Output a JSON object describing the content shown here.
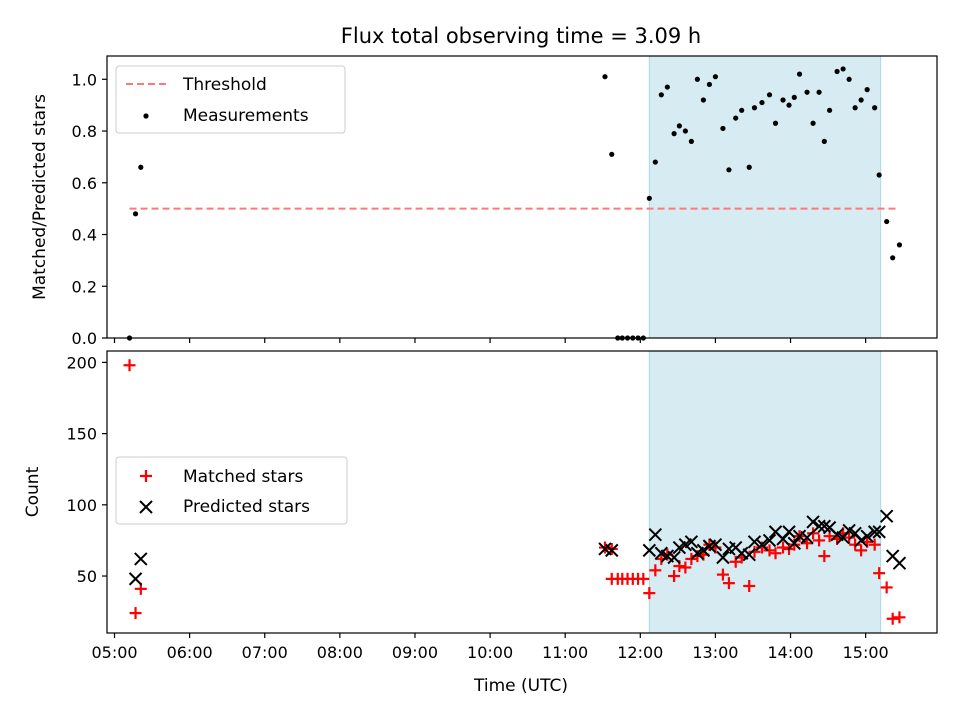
{
  "title": "Flux total observing time = 3.09 h",
  "colors": {
    "threshold": "#ff7777",
    "measurement": "#000000",
    "matched": "#ff0000",
    "predicted": "#000000",
    "span": "#add8e6"
  },
  "chart_data": [
    {
      "type": "scatter",
      "ylabel": "Matched/Predicted stars",
      "xlim": [
        4.9,
        15.95
      ],
      "ylim": [
        0,
        1.09
      ],
      "yticks": [
        0.0,
        0.2,
        0.4,
        0.6,
        0.8,
        1.0
      ],
      "ytick_labels": [
        "0.0",
        "0.2",
        "0.4",
        "0.6",
        "0.8",
        "1.0"
      ],
      "span": [
        12.12,
        15.2
      ],
      "threshold": {
        "name": "Threshold",
        "value": 0.5,
        "x_range": [
          5.2,
          15.45
        ]
      },
      "legend": {
        "placement": "upper-left",
        "entries": [
          "Threshold",
          "Measurements"
        ]
      },
      "series": [
        {
          "name": "Measurements",
          "marker": "dot",
          "x": [
            5.2,
            5.28,
            5.35,
            11.53,
            11.62,
            11.7,
            11.76,
            11.83,
            11.9,
            11.97,
            12.04,
            12.12,
            12.2,
            12.28,
            12.36,
            12.45,
            12.52,
            12.6,
            12.68,
            12.76,
            12.84,
            12.92,
            13.0,
            13.1,
            13.18,
            13.27,
            13.35,
            13.45,
            13.52,
            13.62,
            13.72,
            13.8,
            13.9,
            13.98,
            14.05,
            14.12,
            14.22,
            14.3,
            14.38,
            14.45,
            14.52,
            14.62,
            14.7,
            14.78,
            14.86,
            14.94,
            15.02,
            15.12,
            15.18,
            15.28,
            15.36,
            15.45
          ],
          "y": [
            0.0,
            0.48,
            0.66,
            1.01,
            0.71,
            0.0,
            0.0,
            0.0,
            0.0,
            0.0,
            0.0,
            0.54,
            0.68,
            0.94,
            0.97,
            0.79,
            0.82,
            0.8,
            0.76,
            1.0,
            0.92,
            0.98,
            1.01,
            0.81,
            0.65,
            0.85,
            0.88,
            0.66,
            0.89,
            0.91,
            0.94,
            0.83,
            0.92,
            0.9,
            0.93,
            1.02,
            0.95,
            0.83,
            0.95,
            0.76,
            0.88,
            1.03,
            1.04,
            1.0,
            0.89,
            0.92,
            0.96,
            0.89,
            0.63,
            0.45,
            0.31,
            0.36
          ]
        }
      ]
    },
    {
      "type": "scatter",
      "xlabel": "Time (UTC)",
      "ylabel": "Count",
      "xlim": [
        4.9,
        15.95
      ],
      "ylim": [
        10,
        208
      ],
      "xticks": [
        5,
        6,
        7,
        8,
        9,
        10,
        11,
        12,
        13,
        14,
        15
      ],
      "xtick_labels": [
        "05:00",
        "06:00",
        "07:00",
        "08:00",
        "09:00",
        "10:00",
        "11:00",
        "12:00",
        "13:00",
        "14:00",
        "15:00"
      ],
      "yticks": [
        50,
        100,
        150,
        200
      ],
      "ytick_labels": [
        "50",
        "100",
        "150",
        "200"
      ],
      "span": [
        12.12,
        15.2
      ],
      "legend": {
        "placement": "center-left",
        "entries": [
          "Matched stars",
          "Predicted stars"
        ]
      },
      "series": [
        {
          "name": "Matched stars",
          "marker": "plus",
          "x": [
            5.2,
            5.28,
            5.35,
            11.53,
            11.62,
            11.62,
            11.7,
            11.76,
            11.83,
            11.9,
            11.97,
            12.04,
            12.12,
            12.2,
            12.28,
            12.36,
            12.45,
            12.52,
            12.6,
            12.68,
            12.76,
            12.84,
            12.92,
            13.0,
            13.1,
            13.18,
            13.27,
            13.35,
            13.45,
            13.52,
            13.62,
            13.72,
            13.8,
            13.9,
            13.98,
            14.05,
            14.12,
            14.22,
            14.3,
            14.38,
            14.45,
            14.52,
            14.62,
            14.7,
            14.78,
            14.86,
            14.94,
            15.02,
            15.12,
            15.18,
            15.28,
            15.36,
            15.45
          ],
          "y": [
            198,
            24,
            41,
            70,
            69,
            48,
            48,
            48,
            48,
            48,
            48,
            48,
            38,
            54,
            62,
            65,
            50,
            57,
            56,
            62,
            64,
            65,
            72,
            70,
            51,
            45,
            60,
            63,
            43,
            67,
            70,
            68,
            66,
            70,
            69,
            72,
            78,
            73,
            80,
            75,
            64,
            78,
            76,
            80,
            77,
            72,
            68,
            74,
            72,
            52,
            42,
            20,
            21
          ]
        },
        {
          "name": "Predicted stars",
          "marker": "x",
          "x": [
            5.28,
            5.35,
            11.53,
            11.62,
            12.12,
            12.2,
            12.28,
            12.36,
            12.45,
            12.52,
            12.6,
            12.68,
            12.76,
            12.84,
            12.92,
            13.0,
            13.1,
            13.18,
            13.27,
            13.35,
            13.45,
            13.52,
            13.62,
            13.72,
            13.8,
            13.9,
            13.98,
            14.05,
            14.12,
            14.22,
            14.3,
            14.38,
            14.45,
            14.52,
            14.62,
            14.7,
            14.78,
            14.86,
            14.94,
            15.02,
            15.12,
            15.18,
            15.28,
            15.36,
            15.45
          ],
          "y": [
            48,
            62,
            69,
            68,
            68,
            79,
            66,
            64,
            63,
            70,
            72,
            74,
            66,
            68,
            71,
            72,
            63,
            69,
            70,
            66,
            65,
            74,
            72,
            75,
            81,
            76,
            81,
            73,
            78,
            77,
            88,
            85,
            85,
            84,
            79,
            77,
            82,
            80,
            75,
            78,
            81,
            81,
            92,
            64,
            59
          ]
        }
      ]
    }
  ]
}
